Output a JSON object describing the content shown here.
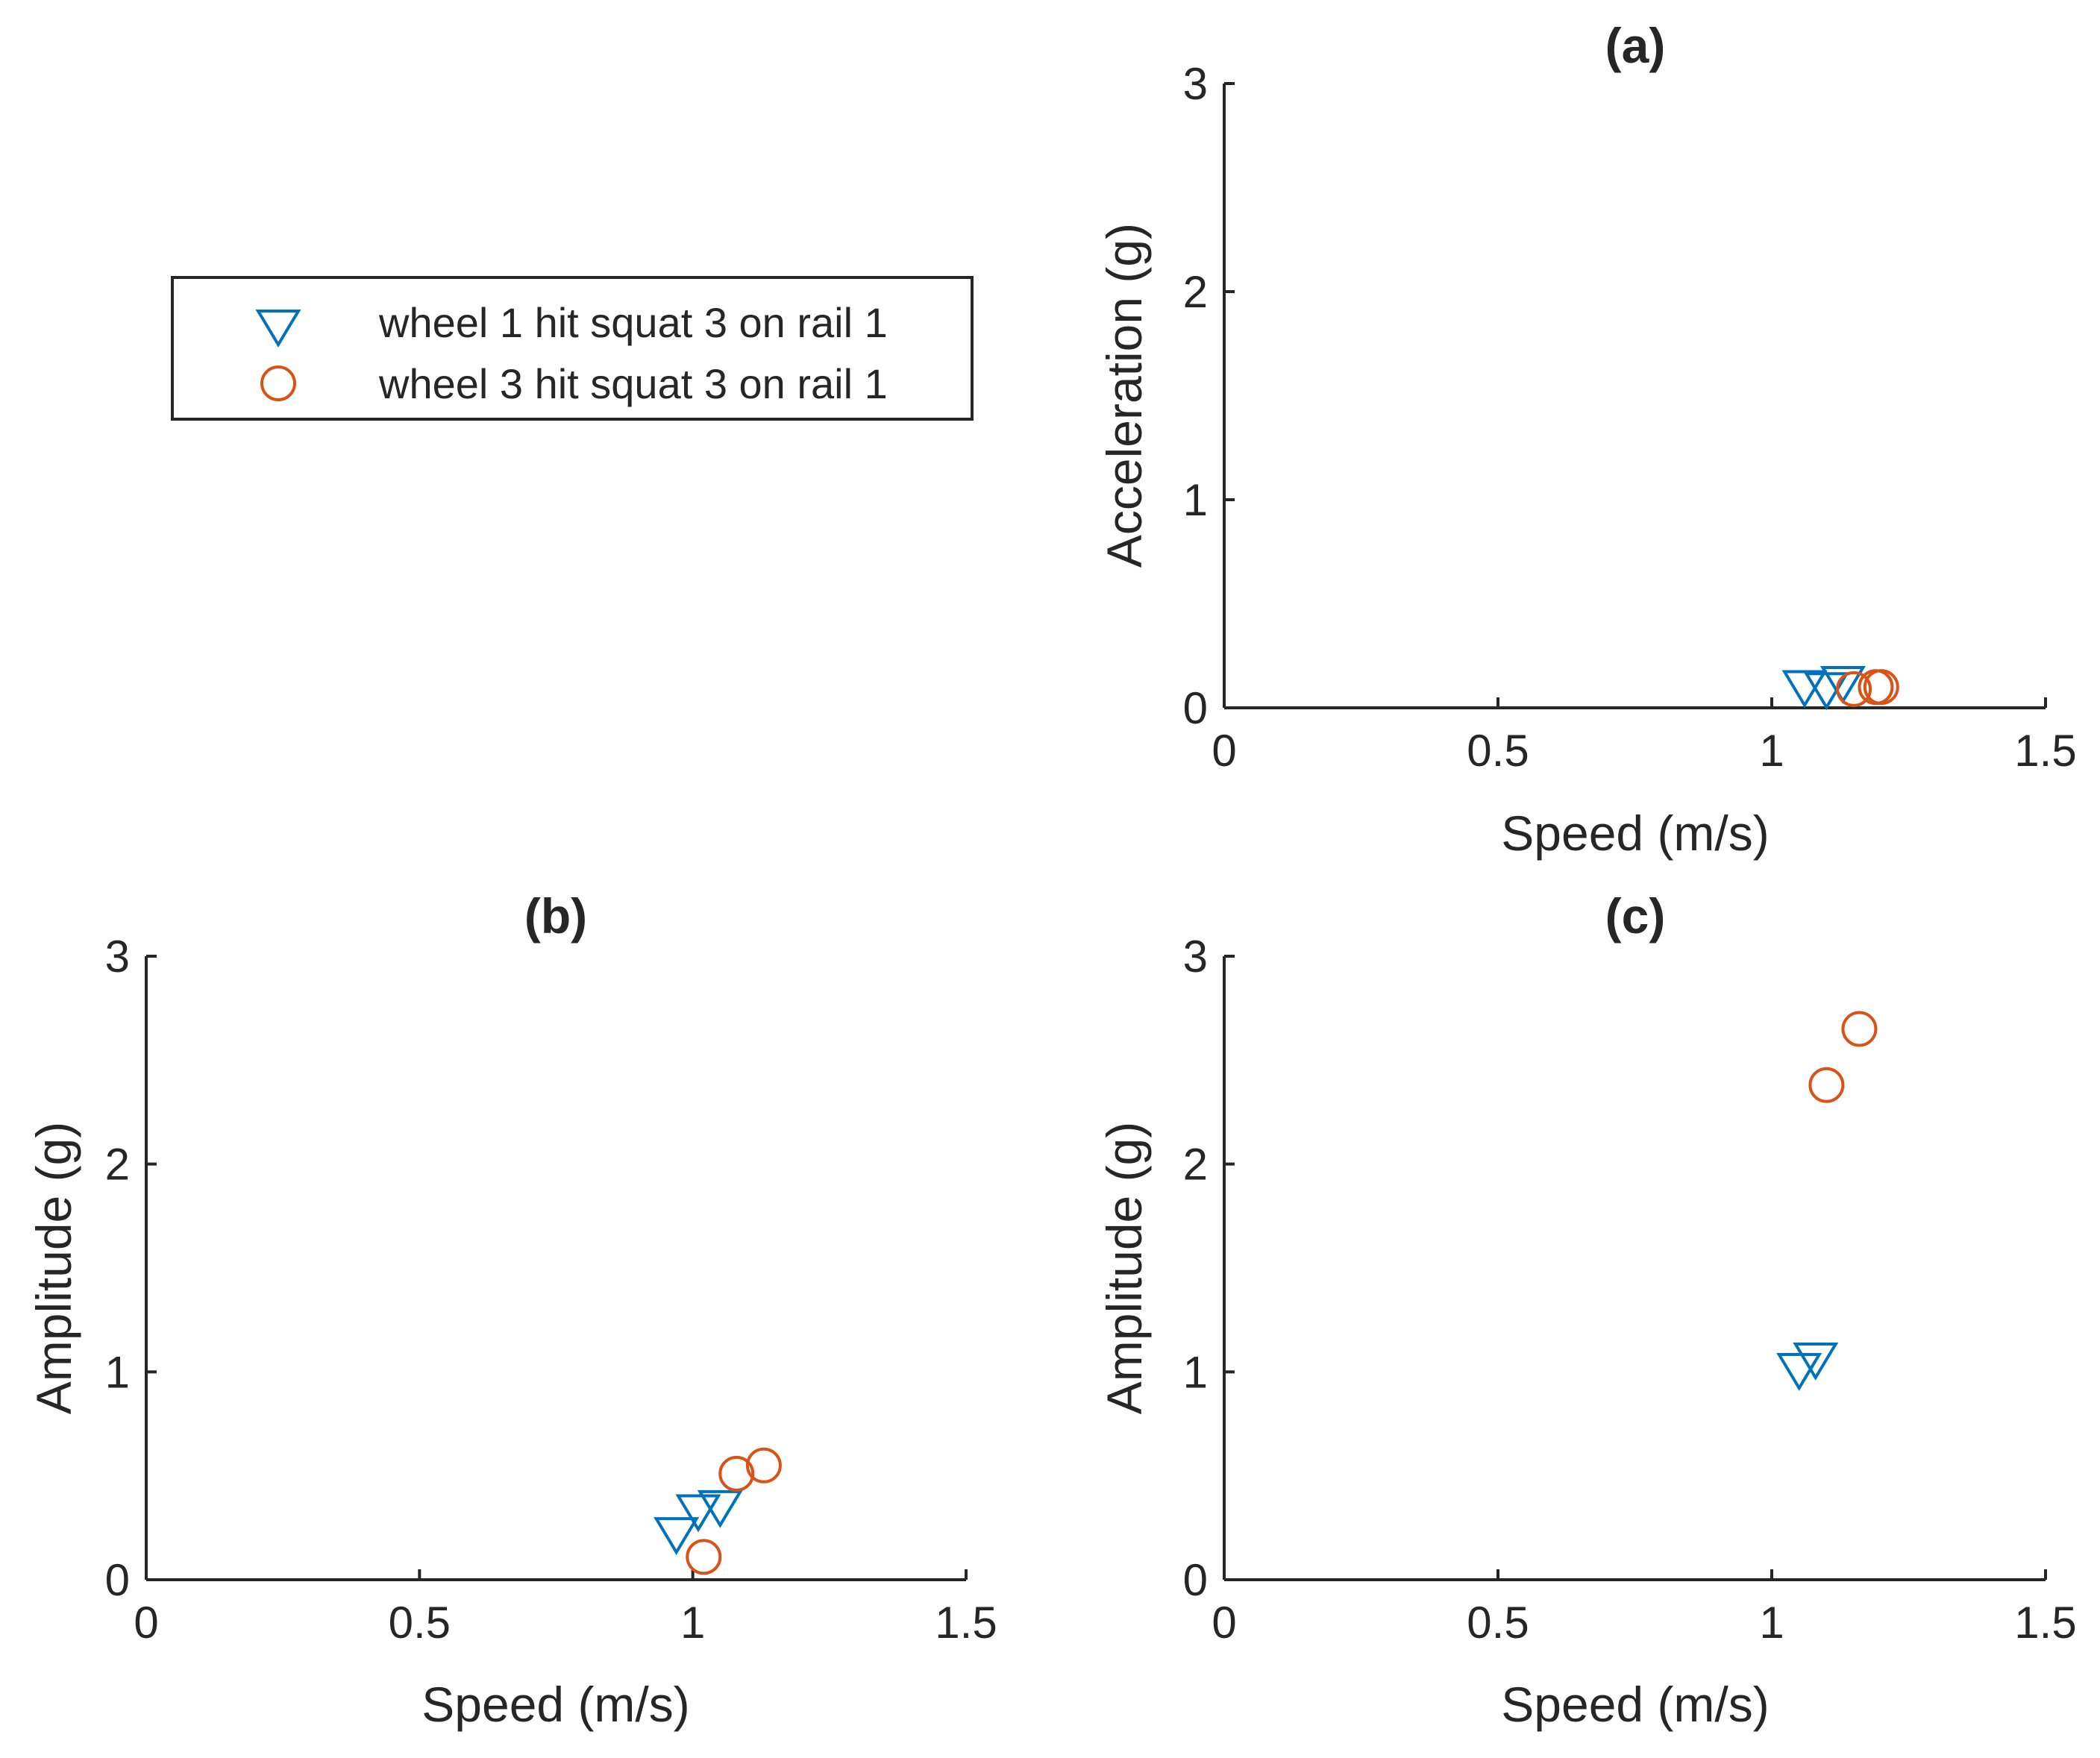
{
  "chart_data": [
    {
      "type": "scatter",
      "panel": "a",
      "title": "(a)",
      "xlabel": "Speed (m/s)",
      "ylabel": "Acceleration (g)",
      "xlim": [
        0,
        1.5
      ],
      "ylim": [
        0,
        3
      ],
      "xticks": [
        "0",
        "0.5",
        "1",
        "1.5"
      ],
      "yticks": [
        "0",
        "1",
        "2",
        "3"
      ],
      "series": [
        {
          "name": "wheel 1 hit squat 3 on rail 1",
          "marker": "triangle-down",
          "color": "#0072BD",
          "points": [
            [
              1.06,
              0.12
            ],
            [
              1.1,
              0.11
            ],
            [
              1.13,
              0.14
            ]
          ]
        },
        {
          "name": "wheel 3 hit squat 3 on rail 1",
          "marker": "circle",
          "color": "#D95319",
          "points": [
            [
              1.15,
              0.09
            ],
            [
              1.19,
              0.1
            ],
            [
              1.2,
              0.1
            ]
          ]
        }
      ]
    },
    {
      "type": "scatter",
      "panel": "b",
      "title": "(b)",
      "xlabel": "Speed (m/s)",
      "ylabel": "Amplitude (g)",
      "xlim": [
        0,
        1.5
      ],
      "ylim": [
        0,
        3
      ],
      "xticks": [
        "0",
        "0.5",
        "1",
        "1.5"
      ],
      "yticks": [
        "0",
        "1",
        "2",
        "3"
      ],
      "series": [
        {
          "name": "wheel 1 hit squat 3 on rail 1",
          "marker": "triangle-down",
          "color": "#0072BD",
          "points": [
            [
              0.97,
              0.24
            ],
            [
              1.01,
              0.35
            ],
            [
              1.05,
              0.37
            ]
          ]
        },
        {
          "name": "wheel 3 hit squat 3 on rail 1",
          "marker": "circle",
          "color": "#D95319",
          "points": [
            [
              1.02,
              0.11
            ],
            [
              1.08,
              0.51
            ],
            [
              1.13,
              0.55
            ]
          ]
        }
      ]
    },
    {
      "type": "scatter",
      "panel": "c",
      "title": "(c)",
      "xlabel": "Speed (m/s)",
      "ylabel": "Amplitude (g)",
      "xlim": [
        0,
        1.5
      ],
      "ylim": [
        0,
        3
      ],
      "xticks": [
        "0",
        "0.5",
        "1",
        "1.5"
      ],
      "yticks": [
        "0",
        "1",
        "2",
        "3"
      ],
      "series": [
        {
          "name": "wheel 1 hit squat 3 on rail 1",
          "marker": "triangle-down",
          "color": "#0072BD",
          "points": [
            [
              1.05,
              1.03
            ],
            [
              1.08,
              1.08
            ]
          ]
        },
        {
          "name": "wheel 3 hit squat 3 on rail 1",
          "marker": "circle",
          "color": "#D95319",
          "points": [
            [
              1.1,
              2.38
            ],
            [
              1.16,
              2.65
            ]
          ]
        }
      ]
    }
  ],
  "legend": {
    "placement": "top-left",
    "entries": [
      {
        "label": "wheel 1 hit squat 3 on rail 1",
        "marker": "triangle-down",
        "color": "#0072BD"
      },
      {
        "label": "wheel 3 hit squat 3 on rail 1",
        "marker": "circle",
        "color": "#D95319"
      }
    ]
  },
  "colors": {
    "axis": "#262626",
    "series1": "#0072BD",
    "series2": "#D95319"
  }
}
